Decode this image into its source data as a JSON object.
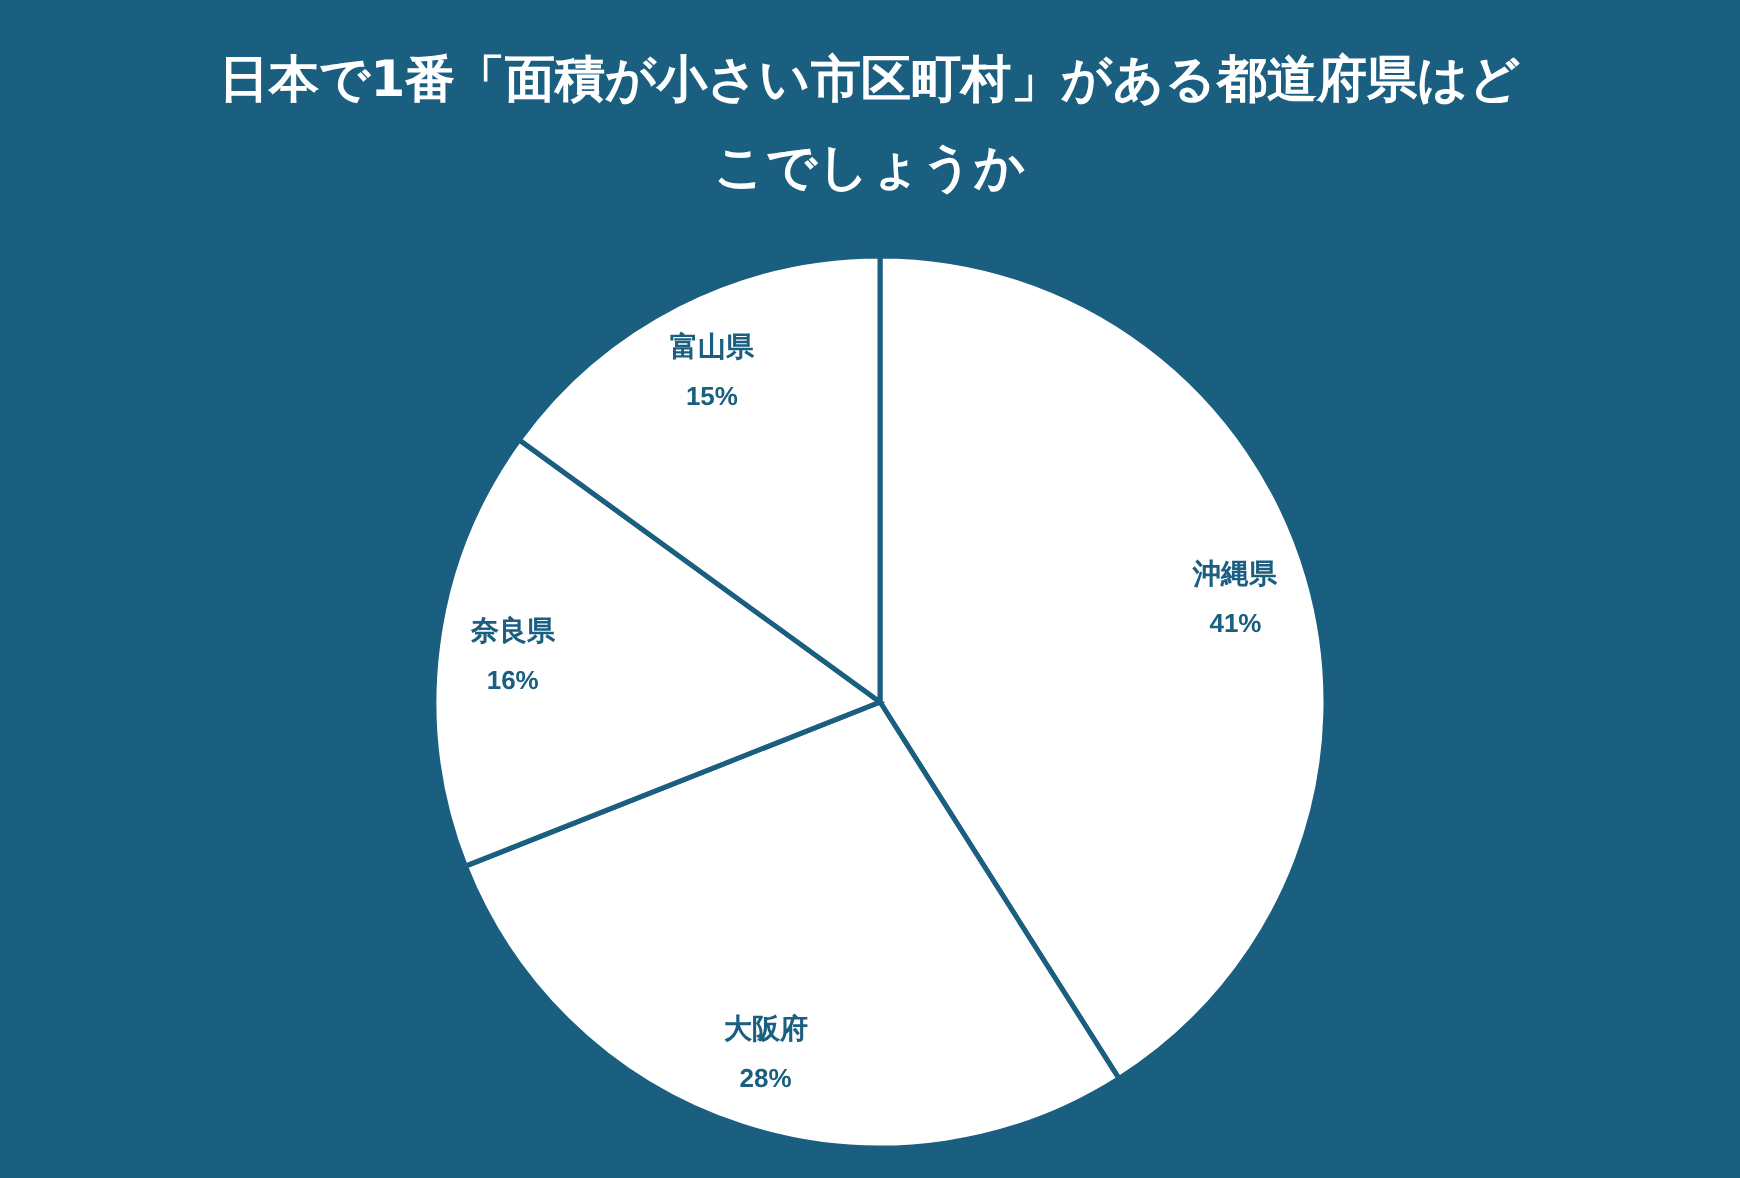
{
  "chart_data": {
    "type": "pie",
    "title": "日本で1番「面積が小さい市区町村」がある都道府県はどこでしょうか",
    "categories": [
      "沖縄県",
      "大阪府",
      "奈良県",
      "富山県"
    ],
    "values": [
      41,
      28,
      16,
      15
    ],
    "colors": [
      "#ffffff",
      "#ffffff",
      "#ffffff",
      "#ffffff"
    ],
    "value_labels": [
      "41%",
      "28%",
      "16%",
      "15%"
    ],
    "legend": false
  }
}
